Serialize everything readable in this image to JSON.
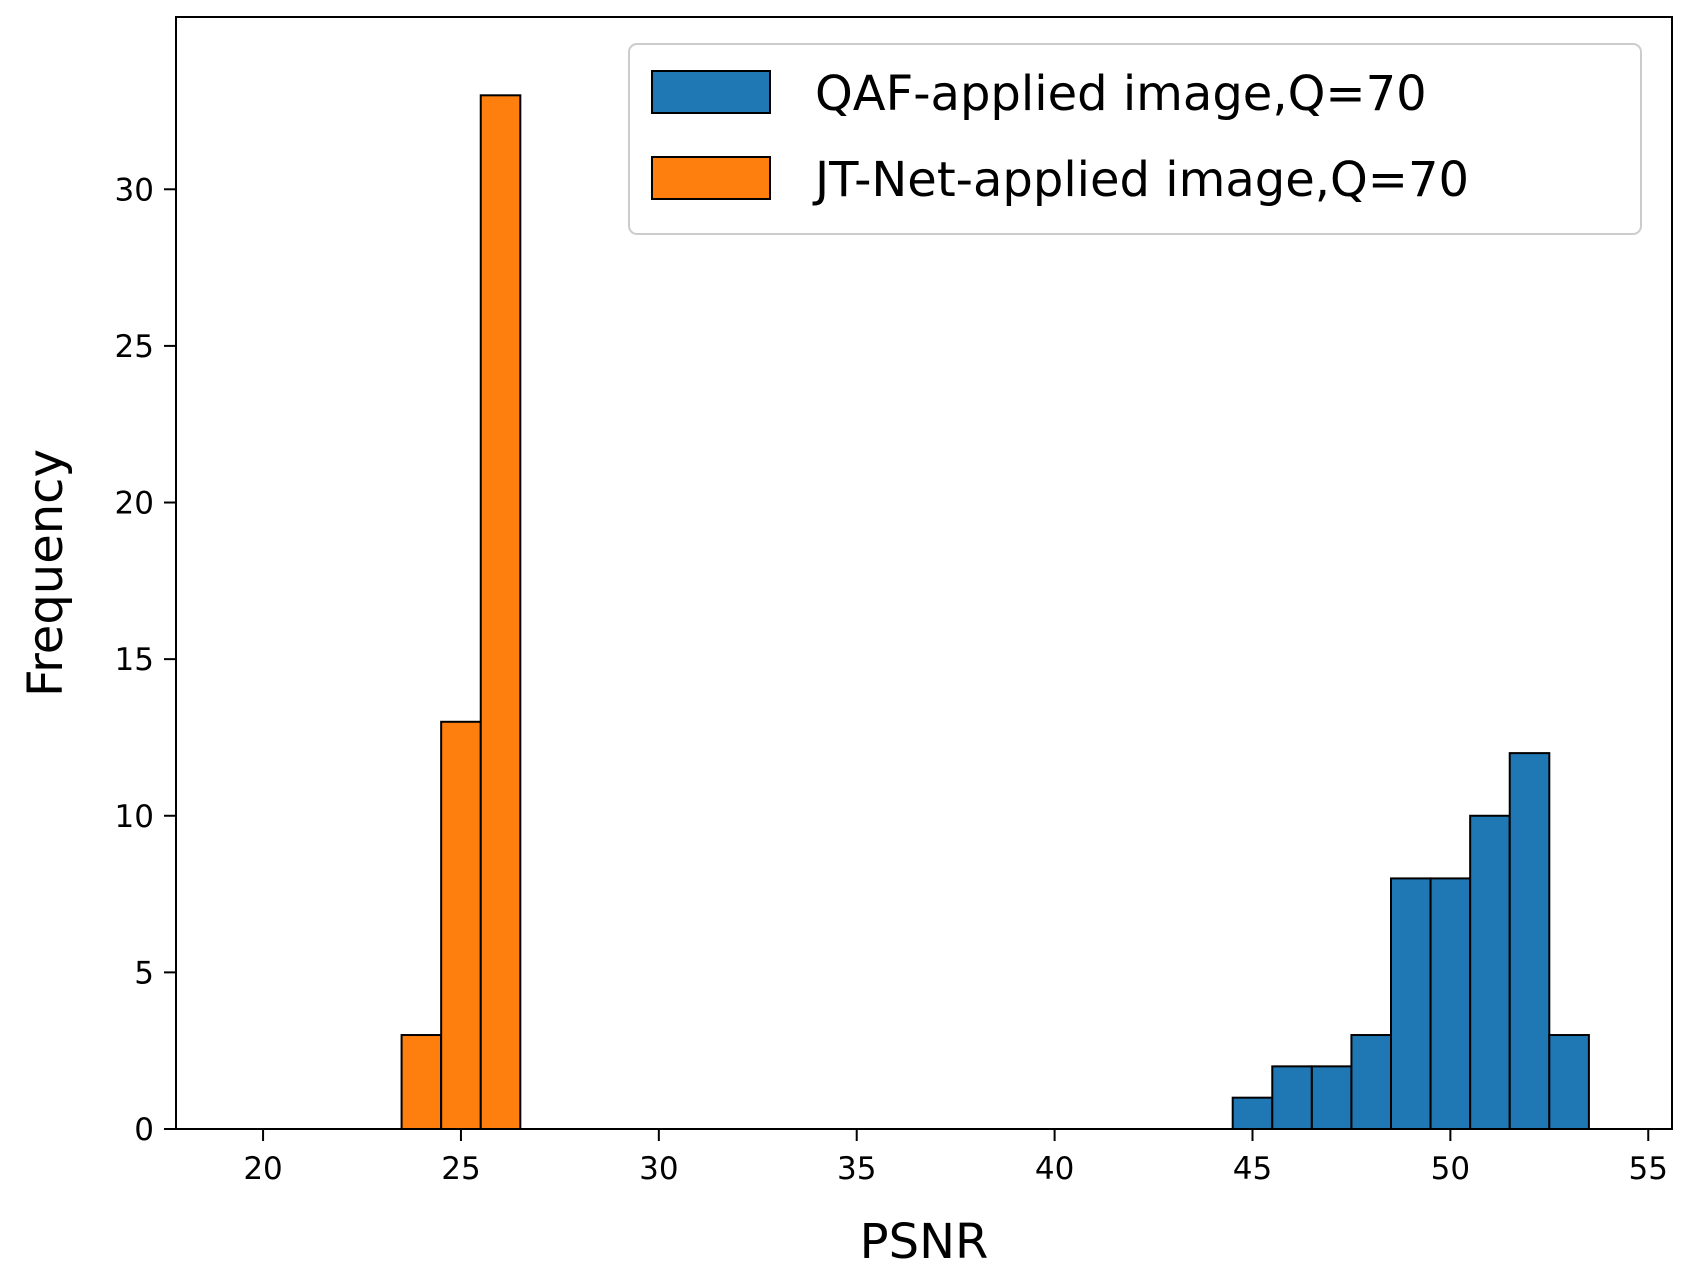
{
  "chart_data": {
    "type": "bar",
    "xlabel": "PSNR",
    "ylabel": "Frequency",
    "xlim": [
      17.8,
      55.6
    ],
    "ylim": [
      0,
      35.5
    ],
    "x_ticks": [
      20,
      25,
      30,
      35,
      40,
      45,
      50,
      55
    ],
    "y_ticks": [
      0,
      5,
      10,
      15,
      20,
      25,
      30
    ],
    "grid": false,
    "legend_position": "top-right",
    "series": [
      {
        "name": "QAF-applied image,Q=70",
        "color": "#1f77b4",
        "bins": [
          {
            "x0": 44.5,
            "x1": 45.5,
            "count": 1
          },
          {
            "x0": 45.5,
            "x1": 46.5,
            "count": 2
          },
          {
            "x0": 46.5,
            "x1": 47.5,
            "count": 2
          },
          {
            "x0": 47.5,
            "x1": 48.5,
            "count": 3
          },
          {
            "x0": 48.5,
            "x1": 49.5,
            "count": 8
          },
          {
            "x0": 49.5,
            "x1": 50.5,
            "count": 8
          },
          {
            "x0": 50.5,
            "x1": 51.5,
            "count": 10
          },
          {
            "x0": 51.5,
            "x1": 52.5,
            "count": 12
          },
          {
            "x0": 52.5,
            "x1": 53.5,
            "count": 3
          },
          {
            "x0": 53.5,
            "x1": 54.5,
            "count": 0
          }
        ]
      },
      {
        "name": "JT-Net-applied image,Q=70",
        "color": "#ff7f0e",
        "bins": [
          {
            "x0": 19.5,
            "x1": 20.5,
            "count": 0
          },
          {
            "x0": 20.5,
            "x1": 21.5,
            "count": 0
          },
          {
            "x0": 21.5,
            "x1": 22.5,
            "count": 0
          },
          {
            "x0": 22.5,
            "x1": 23.5,
            "count": 0
          },
          {
            "x0": 23.5,
            "x1": 24.5,
            "count": 3
          },
          {
            "x0": 24.5,
            "x1": 25.5,
            "count": 13
          },
          {
            "x0": 25.5,
            "x1": 26.5,
            "count": 33
          }
        ]
      }
    ]
  }
}
